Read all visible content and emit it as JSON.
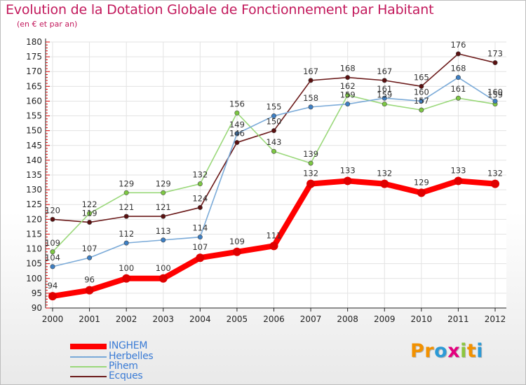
{
  "header": {
    "title": "Evolution de la Dotation Globale de Fonctionnement par Habitant",
    "subtitle": "(en € et par an)"
  },
  "logo": {
    "text": "Proxiti",
    "letters": [
      {
        "ch": "P",
        "color": "#f29100"
      },
      {
        "ch": "r",
        "color": "#f29100"
      },
      {
        "ch": "o",
        "color": "#2c9ad6"
      },
      {
        "ch": "x",
        "color": "#e3007e"
      },
      {
        "ch": "i",
        "color": "#8cc63e"
      },
      {
        "ch": "t",
        "color": "#f29100"
      },
      {
        "ch": "i",
        "color": "#2c9ad6"
      }
    ]
  },
  "chart_data": {
    "type": "line",
    "title": "Evolution de la Dotation Globale de Fonctionnement par Habitant",
    "subtitle": "(en € et par an)",
    "xlabel": "",
    "ylabel": "",
    "ylim": [
      90,
      180
    ],
    "y_ticks": [
      90,
      95,
      100,
      105,
      110,
      115,
      120,
      125,
      130,
      135,
      140,
      145,
      150,
      155,
      160,
      165,
      170,
      175,
      180
    ],
    "categories": [
      "2000",
      "2001",
      "2002",
      "2003",
      "2004",
      "2005",
      "2006",
      "2007",
      "2008",
      "2009",
      "2010",
      "2011",
      "2012"
    ],
    "legend_position": "bottom-left",
    "series": [
      {
        "name": "Ecques",
        "color": "#6b1a1a",
        "marker": "#5a1010",
        "thick": false,
        "values": [
          120,
          119,
          121,
          121,
          124,
          146,
          150,
          167,
          168,
          167,
          165,
          176,
          173
        ]
      },
      {
        "name": "Pihem",
        "color": "#9ad87a",
        "marker": "#7dc843",
        "thick": false,
        "values": [
          109,
          122,
          129,
          129,
          132,
          156,
          143,
          139,
          162,
          159,
          157,
          161,
          159
        ]
      },
      {
        "name": "Herbelles",
        "color": "#7aaad8",
        "marker": "#3d7fc4",
        "thick": false,
        "values": [
          104,
          107,
          112,
          113,
          114,
          149,
          155,
          158,
          159,
          161,
          160,
          168,
          160
        ]
      },
      {
        "name": "INGHEM",
        "color": "#ff0000",
        "marker": "#e00000",
        "thick": true,
        "values": [
          94,
          96,
          100,
          100,
          107,
          109,
          111,
          132,
          133,
          132,
          129,
          133,
          132
        ]
      }
    ],
    "legend": [
      "INGHEM",
      "Herbelles",
      "Pihem",
      "Ecques"
    ]
  }
}
